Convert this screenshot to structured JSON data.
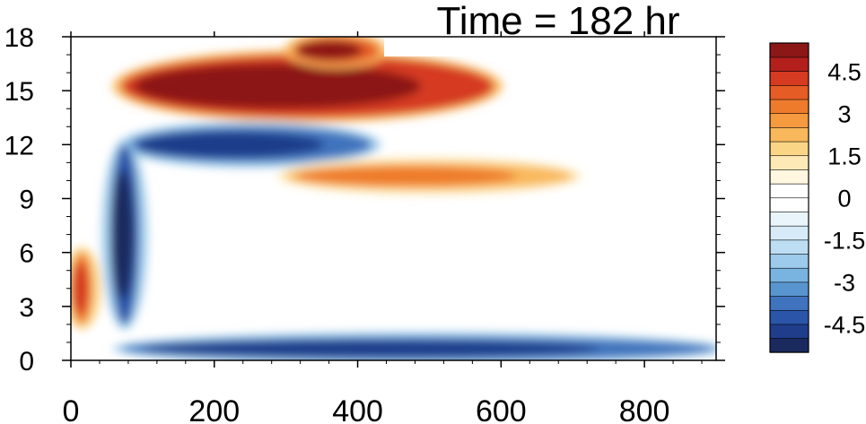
{
  "chart_data": {
    "type": "heatmap",
    "title": "Time = 182 hr",
    "xlabel": "",
    "ylabel": "",
    "xlim": [
      0,
      900
    ],
    "ylim": [
      0,
      18
    ],
    "x_ticks": [
      0,
      200,
      400,
      600,
      800
    ],
    "x_tick_labels": [
      "0",
      "200",
      "400",
      "600",
      "800"
    ],
    "y_ticks": [
      0,
      3,
      6,
      9,
      12,
      15,
      18
    ],
    "y_tick_labels": [
      "0",
      "3",
      "6",
      "9",
      "12",
      "15",
      "18"
    ],
    "colorbar": {
      "min": -5.5,
      "max": 5.5,
      "step": 0.5,
      "labels": [
        "4.5",
        "3",
        "1.5",
        "0",
        "-1.5",
        "-3",
        "-4.5"
      ],
      "label_values": [
        4.5,
        3,
        1.5,
        0,
        -1.5,
        -3,
        -4.5
      ],
      "colors": [
        "#1a2a5e",
        "#1f3d8a",
        "#2a55a8",
        "#3f73bd",
        "#5895cf",
        "#79b4e0",
        "#9ccbeb",
        "#bcddf2",
        "#d6ebf7",
        "#eaf5fb",
        "#ffffff",
        "#ffffff",
        "#fff7df",
        "#fde9b6",
        "#fbd586",
        "#f9b85c",
        "#f59a3f",
        "#ee7b2c",
        "#e55c25",
        "#d63a20",
        "#b3201c",
        "#8c1717"
      ]
    },
    "field_features": [
      {
        "desc": "strong positive layer",
        "x_range": [
          70,
          590
        ],
        "y_range": [
          13.5,
          17.0
        ],
        "peak": 5.5
      },
      {
        "desc": "negative layer below jet",
        "x_range": [
          80,
          420
        ],
        "y_range": [
          11.0,
          13.0
        ],
        "peak": -4.8
      },
      {
        "desc": "positive band",
        "x_range": [
          300,
          700
        ],
        "y_range": [
          9.5,
          11.0
        ],
        "peak": 3.0
      },
      {
        "desc": "negative near-surface layer",
        "x_range": [
          70,
          900
        ],
        "y_range": [
          0.0,
          1.3
        ],
        "peak": -4.8
      },
      {
        "desc": "negative vertical column",
        "x_range": [
          55,
          95
        ],
        "y_range": [
          2.0,
          12.0
        ],
        "peak": -5.5
      },
      {
        "desc": "positive near-surface left",
        "x_range": [
          0,
          30
        ],
        "y_range": [
          2.0,
          6.0
        ],
        "peak": 4.0
      },
      {
        "desc": "top positive patch",
        "x_range": [
          310,
          430
        ],
        "y_range": [
          16.5,
          18.0
        ],
        "peak": 5.0
      }
    ]
  }
}
